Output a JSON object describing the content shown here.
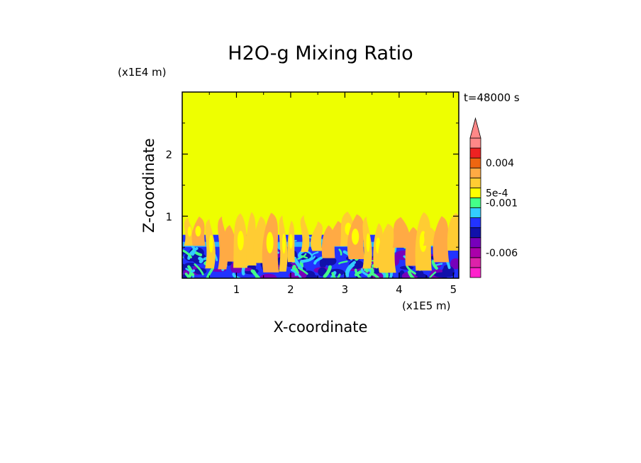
{
  "chart_data": {
    "type": "heatmap",
    "title": "H2O-g Mixing Ratio",
    "xlabel": "X-coordinate",
    "ylabel": "Z-coordinate",
    "x_scale_label": "(x1E5 m)",
    "y_scale_label": "(x1E4 m)",
    "time_label": "t=48000 s",
    "xlim": [
      0,
      5.1
    ],
    "ylim": [
      0,
      3.0
    ],
    "x_ticks": [
      "1",
      "2",
      "3",
      "4",
      "5"
    ],
    "x_tick_values": [
      1,
      2,
      3,
      4,
      5
    ],
    "y_ticks": [
      "1",
      "2"
    ],
    "y_tick_values": [
      1,
      2
    ],
    "colorbar": {
      "levels": [
        "#ff22cc",
        "#dd22aa",
        "#aa00aa",
        "#7700bb",
        "#1111aa",
        "#2233ff",
        "#33ccff",
        "#44ff88",
        "#ffff00",
        "#ffcc33",
        "#ffaa44",
        "#ee6611",
        "#ee2222",
        "#ff8888"
      ],
      "labels": [
        "0.004",
        "5e-4",
        "-0.001",
        "-0.006"
      ],
      "label_levels": [
        11.5,
        8.5,
        7.5,
        2.5
      ],
      "extend": "max"
    },
    "regions": [
      {
        "name": "background",
        "color": "#eeff00",
        "z_range": [
          0.7,
          3.0
        ]
      },
      {
        "name": "boundary-layer",
        "color": "#2233ff",
        "z_range": [
          0,
          0.7
        ]
      }
    ]
  }
}
